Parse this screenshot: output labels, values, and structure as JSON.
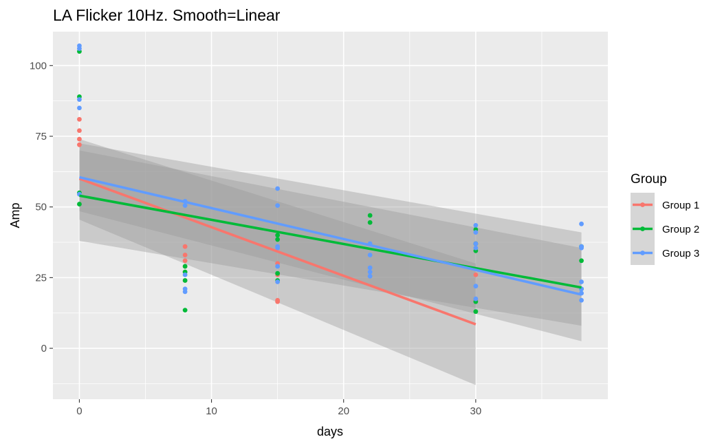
{
  "chart_data": {
    "type": "scatter",
    "title": "LA Flicker 10Hz. Smooth=Linear",
    "xlabel": "days",
    "ylabel": "Amp",
    "xlim": [
      -2,
      40
    ],
    "ylim": [
      -18,
      112
    ],
    "x_ticks": [
      0,
      10,
      20,
      30
    ],
    "x_tick_labels": [
      "0",
      "10",
      "20",
      "30"
    ],
    "y_ticks": [
      0,
      25,
      50,
      75,
      100
    ],
    "y_tick_labels": [
      "0",
      "25",
      "50",
      "75",
      "100"
    ],
    "grid": true,
    "smooth": "linear",
    "legend": {
      "title": "Group",
      "position": "right"
    },
    "series": [
      {
        "name": "Group 1",
        "color": "#F8766D",
        "points": [
          [
            0,
            81
          ],
          [
            0,
            77
          ],
          [
            0,
            74
          ],
          [
            0,
            72
          ],
          [
            8,
            36
          ],
          [
            8,
            33
          ],
          [
            8,
            31
          ],
          [
            8,
            29
          ],
          [
            8,
            27
          ],
          [
            8,
            24
          ],
          [
            15,
            30
          ],
          [
            15,
            26
          ],
          [
            15,
            17
          ],
          [
            15,
            16.5
          ],
          [
            30,
            37
          ],
          [
            30,
            26
          ],
          [
            30,
            17
          ]
        ],
        "fit": {
          "x": [
            0,
            30
          ],
          "y": [
            60,
            8.5
          ]
        },
        "ribbon": {
          "x": [
            0,
            30
          ],
          "lower": [
            45.5,
            -13
          ],
          "upper": [
            74,
            30
          ]
        }
      },
      {
        "name": "Group 2",
        "color": "#00BA38",
        "points": [
          [
            0,
            105
          ],
          [
            0,
            89
          ],
          [
            0,
            55
          ],
          [
            0,
            51
          ],
          [
            8,
            29
          ],
          [
            8,
            27
          ],
          [
            8,
            24
          ],
          [
            8,
            13.5
          ],
          [
            15,
            40
          ],
          [
            15,
            38.5
          ],
          [
            15,
            26.5
          ],
          [
            15,
            24
          ],
          [
            22,
            47
          ],
          [
            22,
            44.5
          ],
          [
            30,
            42
          ],
          [
            30,
            37
          ],
          [
            30,
            34.5
          ],
          [
            30,
            16.5
          ],
          [
            30,
            13
          ],
          [
            38,
            36
          ],
          [
            38,
            31
          ],
          [
            38,
            21
          ]
        ],
        "fit": {
          "x": [
            0,
            38
          ],
          "y": [
            54,
            21.5
          ]
        },
        "ribbon": {
          "x": [
            0,
            38
          ],
          "lower": [
            38,
            8
          ],
          "upper": [
            70,
            35.5
          ]
        }
      },
      {
        "name": "Group 3",
        "color": "#619CFF",
        "points": [
          [
            0,
            107
          ],
          [
            0,
            106
          ],
          [
            0,
            88
          ],
          [
            0,
            85
          ],
          [
            0,
            54.5
          ],
          [
            8,
            52
          ],
          [
            8,
            50.5
          ],
          [
            8,
            26
          ],
          [
            8,
            21
          ],
          [
            8,
            20
          ],
          [
            15,
            56.5
          ],
          [
            15,
            50.5
          ],
          [
            15,
            36
          ],
          [
            15,
            35.5
          ],
          [
            15,
            29
          ],
          [
            15,
            23.5
          ],
          [
            22,
            37
          ],
          [
            22,
            33
          ],
          [
            22,
            28.5
          ],
          [
            22,
            27
          ],
          [
            22,
            25.5
          ],
          [
            30,
            43.5
          ],
          [
            30,
            41
          ],
          [
            30,
            37
          ],
          [
            30,
            35.5
          ],
          [
            30,
            22
          ],
          [
            30,
            17.5
          ],
          [
            38,
            44
          ],
          [
            38,
            36
          ],
          [
            38,
            35.5
          ],
          [
            38,
            23.5
          ],
          [
            38,
            21
          ],
          [
            38,
            19.5
          ],
          [
            38,
            17
          ]
        ],
        "fit": {
          "x": [
            0,
            38
          ],
          "y": [
            60.5,
            19
          ]
        },
        "ribbon": {
          "x": [
            0,
            38
          ],
          "lower": [
            48.5,
            2.5
          ],
          "upper": [
            72.5,
            41
          ]
        }
      }
    ]
  }
}
